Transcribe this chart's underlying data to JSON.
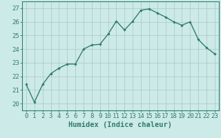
{
  "x": [
    0,
    1,
    2,
    3,
    4,
    5,
    6,
    7,
    8,
    9,
    10,
    11,
    12,
    13,
    14,
    15,
    16,
    17,
    18,
    19,
    20,
    21,
    22,
    23
  ],
  "y": [
    21.4,
    20.1,
    21.4,
    22.2,
    22.6,
    22.9,
    22.9,
    24.0,
    24.3,
    24.35,
    25.1,
    26.05,
    25.4,
    26.05,
    26.85,
    26.95,
    26.65,
    26.35,
    26.0,
    25.75,
    26.0,
    24.7,
    24.1,
    23.65
  ],
  "line_color": "#2e7d6e",
  "marker": "D",
  "marker_size": 2.2,
  "bg_color": "#cceae8",
  "grid_color": "#b0ccca",
  "xlabel": "Humidex (Indice chaleur)",
  "ylabel": "",
  "xlim": [
    -0.5,
    23.5
  ],
  "ylim": [
    19.5,
    27.5
  ],
  "yticks": [
    20,
    21,
    22,
    23,
    24,
    25,
    26,
    27
  ],
  "xticks": [
    0,
    1,
    2,
    3,
    4,
    5,
    6,
    7,
    8,
    9,
    10,
    11,
    12,
    13,
    14,
    15,
    16,
    17,
    18,
    19,
    20,
    21,
    22,
    23
  ],
  "tick_label_fontsize": 6.5,
  "xlabel_fontsize": 7.5,
  "tick_color": "#2e7d6e",
  "axis_color": "#2e7d6e",
  "linewidth": 1.0
}
